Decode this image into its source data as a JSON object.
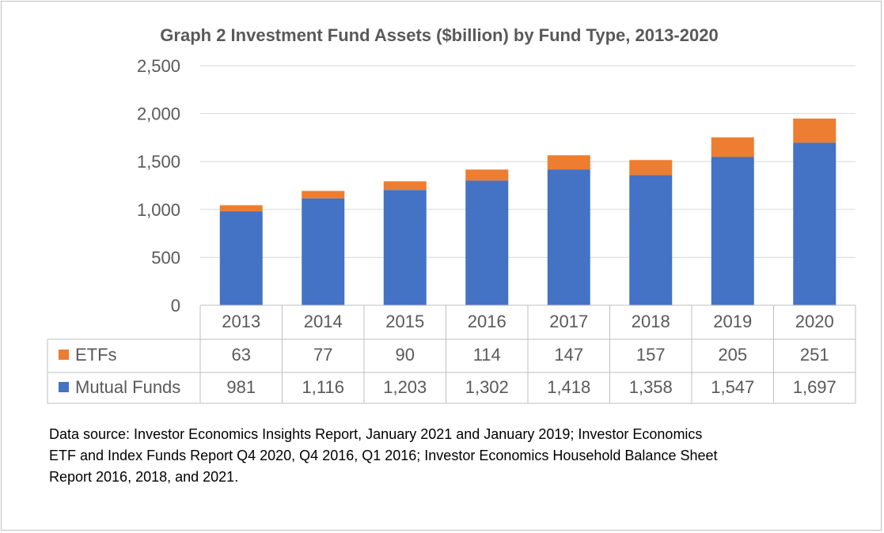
{
  "chart_data": {
    "type": "bar",
    "stacked": true,
    "title": "Graph 2 Investment Fund Assets ($billion) by Fund Type, 2013-2020",
    "categories": [
      "2013",
      "2014",
      "2015",
      "2016",
      "2017",
      "2018",
      "2019",
      "2020"
    ],
    "series": [
      {
        "name": "Mutual Funds",
        "color": "#4472C4",
        "values": [
          981,
          1116,
          1203,
          1302,
          1418,
          1358,
          1547,
          1697
        ],
        "labels": [
          "981",
          "1,116",
          "1,203",
          "1,302",
          "1,418",
          "1,358",
          "1,547",
          "1,697"
        ]
      },
      {
        "name": "ETFs",
        "color": "#ED7D31",
        "values": [
          63,
          77,
          90,
          114,
          147,
          157,
          205,
          251
        ],
        "labels": [
          "63",
          "77",
          "90",
          "114",
          "147",
          "157",
          "205",
          "251"
        ]
      }
    ],
    "table_row_order": [
      "ETFs",
      "Mutual Funds"
    ],
    "ylim": [
      0,
      2500
    ],
    "yticks": [
      0,
      500,
      1000,
      1500,
      2000,
      2500
    ],
    "ytick_labels": [
      "0",
      "500",
      "1,000",
      "1,500",
      "2,000",
      "2,500"
    ],
    "grid": true,
    "legend": "data-table"
  },
  "footnote": {
    "line1": "Data source: Investor Economics Insights Report, January 2021 and January 2019; Investor Economics",
    "line2": "ETF and Index Funds Report Q4 2020, Q4 2016, Q1 2016; Investor Economics Household Balance Sheet",
    "line3": "Report 2016, 2018, and 2021."
  }
}
